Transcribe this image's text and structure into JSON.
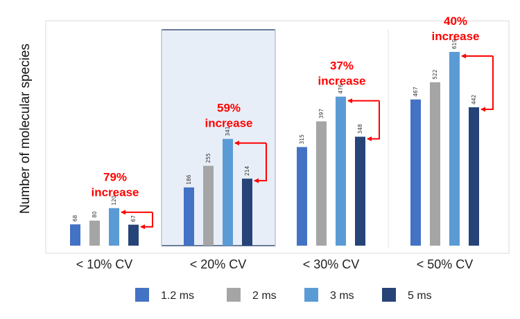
{
  "chart_data": {
    "type": "bar",
    "ylabel": "Number of molecular species",
    "categories": [
      "< 10% CV",
      "< 20% CV",
      "< 30% CV",
      "< 50% CV"
    ],
    "series": [
      {
        "name": "1.2 ms",
        "color": "#4472c4",
        "values": [
          68,
          186,
          315,
          467
        ]
      },
      {
        "name": "2 ms",
        "color": "#a5a5a5",
        "values": [
          80,
          255,
          397,
          522
        ]
      },
      {
        "name": "3 ms",
        "color": "#5b9bd5",
        "values": [
          120,
          341,
          476,
          619
        ]
      },
      {
        "name": "5 ms",
        "color": "#264478",
        "values": [
          67,
          214,
          348,
          442
        ]
      }
    ],
    "annotations": [
      {
        "category": "< 10% CV",
        "line1": "79%",
        "line2": "increase"
      },
      {
        "category": "< 20% CV",
        "line1": "59%",
        "line2": "increase"
      },
      {
        "category": "< 30% CV",
        "line1": "37%",
        "line2": "increase"
      },
      {
        "category": "< 50% CV",
        "line1": "40%",
        "line2": "increase"
      }
    ],
    "highlighted_category": "< 20% CV",
    "ylim": [
      0,
      680
    ],
    "grid": false,
    "legend": "bottom"
  }
}
